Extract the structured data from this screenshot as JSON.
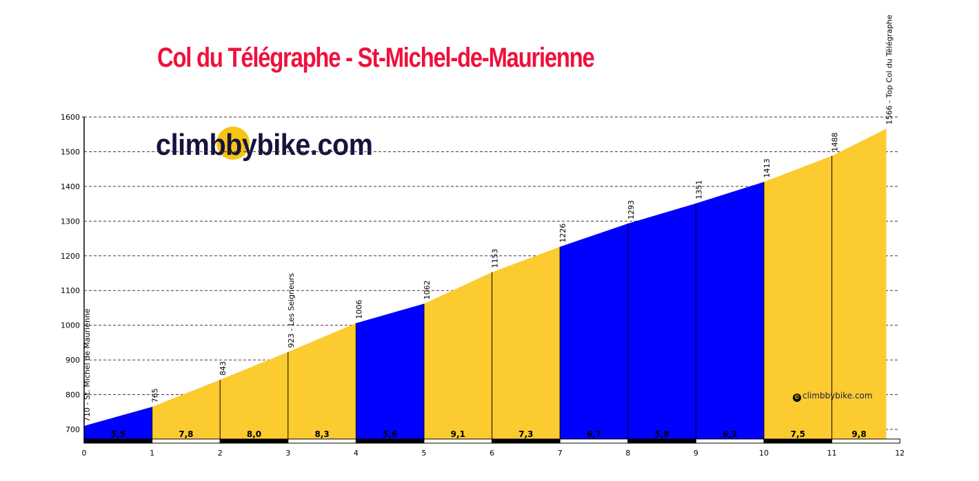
{
  "title": "Col du Télégraphe - St-Michel-de-Maurienne",
  "brand": "climbbybike.com",
  "watermark": {
    "symbol": "©",
    "text": "climbbybike.com"
  },
  "colors": {
    "title": "#f0103c",
    "brand": "#14143c",
    "easy_segment": "#0000ff",
    "hard_segment": "#fccb30",
    "gridline": "#5a2a4a"
  },
  "chart_data": {
    "type": "area",
    "title": "Col du Télégraphe - St-Michel-de-Maurienne",
    "xlabel": "",
    "ylabel": "",
    "xlim": [
      0,
      12
    ],
    "ylim": [
      670,
      1600
    ],
    "grid": "horizontal dashed",
    "x_ticks": [
      "0",
      "1",
      "2",
      "3",
      "4",
      "5",
      "6",
      "7",
      "8",
      "9",
      "10",
      "11",
      "12"
    ],
    "y_ticks": [
      "700",
      "800",
      "900",
      "1000",
      "1100",
      "1200",
      "1300",
      "1400",
      "1500",
      "1600"
    ],
    "points": [
      {
        "km": 0,
        "elevation": 710,
        "label": "710 - St. Michel de Maurienne"
      },
      {
        "km": 1,
        "elevation": 765,
        "label": "765"
      },
      {
        "km": 2,
        "elevation": 843,
        "label": "843"
      },
      {
        "km": 3,
        "elevation": 923,
        "label": "923 - Les Seigneurs"
      },
      {
        "km": 4,
        "elevation": 1006,
        "label": "1006"
      },
      {
        "km": 5,
        "elevation": 1062,
        "label": "1062"
      },
      {
        "km": 6,
        "elevation": 1153,
        "label": "1153"
      },
      {
        "km": 7,
        "elevation": 1226,
        "label": "1226"
      },
      {
        "km": 8,
        "elevation": 1293,
        "label": "1293"
      },
      {
        "km": 9,
        "elevation": 1351,
        "label": "1351"
      },
      {
        "km": 10,
        "elevation": 1413,
        "label": "1413"
      },
      {
        "km": 11,
        "elevation": 1488,
        "label": "1488"
      },
      {
        "km": 11.8,
        "elevation": 1566,
        "label": "1566 - Top Col du Télégraphe"
      }
    ],
    "segments": [
      {
        "from": 0,
        "to": 1,
        "gradient": "5,5",
        "color": "#0000ff"
      },
      {
        "from": 1,
        "to": 2,
        "gradient": "7,8",
        "color": "#fccb30"
      },
      {
        "from": 2,
        "to": 3,
        "gradient": "8,0",
        "color": "#fccb30"
      },
      {
        "from": 3,
        "to": 4,
        "gradient": "8,3",
        "color": "#fccb30"
      },
      {
        "from": 4,
        "to": 5,
        "gradient": "5,6",
        "color": "#0000ff"
      },
      {
        "from": 5,
        "to": 6,
        "gradient": "9,1",
        "color": "#fccb30"
      },
      {
        "from": 6,
        "to": 7,
        "gradient": "7,3",
        "color": "#fccb30"
      },
      {
        "from": 7,
        "to": 8,
        "gradient": "6,7",
        "color": "#0000ff"
      },
      {
        "from": 8,
        "to": 9,
        "gradient": "5,8",
        "color": "#0000ff"
      },
      {
        "from": 9,
        "to": 10,
        "gradient": "6,2",
        "color": "#0000ff"
      },
      {
        "from": 10,
        "to": 11,
        "gradient": "7,5",
        "color": "#fccb30"
      },
      {
        "from": 11,
        "to": 11.8,
        "gradient": "9,8",
        "color": "#fccb30"
      }
    ]
  }
}
